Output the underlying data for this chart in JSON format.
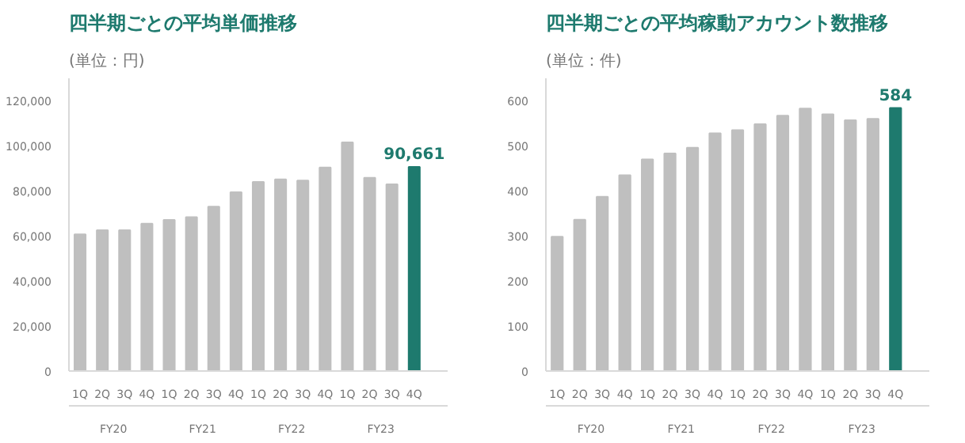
{
  "chart_data": [
    {
      "type": "bar",
      "title": "四半期ごとの平均単価推移",
      "ylabel": "(単位：円)",
      "categories": [
        "1Q",
        "2Q",
        "3Q",
        "4Q",
        "1Q",
        "2Q",
        "3Q",
        "4Q",
        "1Q",
        "2Q",
        "3Q",
        "4Q",
        "1Q",
        "2Q",
        "3Q",
        "4Q"
      ],
      "values": [
        60700,
        62500,
        62500,
        65400,
        67100,
        68300,
        73000,
        79400,
        84000,
        85100,
        84600,
        90400,
        101500,
        85800,
        82900,
        90661
      ],
      "colors": [
        "#bfbfbf",
        "#bfbfbf",
        "#bfbfbf",
        "#bfbfbf",
        "#bfbfbf",
        "#bfbfbf",
        "#bfbfbf",
        "#bfbfbf",
        "#bfbfbf",
        "#bfbfbf",
        "#bfbfbf",
        "#bfbfbf",
        "#bfbfbf",
        "#bfbfbf",
        "#bfbfbf",
        "#1e7a6e"
      ],
      "value_labels": [
        null,
        null,
        null,
        null,
        null,
        null,
        null,
        null,
        null,
        null,
        null,
        null,
        null,
        null,
        null,
        "90,661"
      ],
      "annotations": [
        "FY20",
        "FY21",
        "FY22",
        "FY23"
      ],
      "ylim": [
        0,
        130000
      ],
      "yticks": [
        {
          "value": 0,
          "label": "0"
        },
        {
          "value": 20000,
          "label": "20,000"
        },
        {
          "value": 40000,
          "label": "40,000"
        },
        {
          "value": 60000,
          "label": "60,000"
        },
        {
          "value": 80000,
          "label": "80,000"
        },
        {
          "value": 100000,
          "label": "100,000"
        },
        {
          "value": 120000,
          "label": "120,000"
        }
      ],
      "grid": false
    },
    {
      "type": "bar",
      "title": "四半期ごとの平均稼動アカウント数推移",
      "ylabel": "(単位：件)",
      "categories": [
        "1Q",
        "2Q",
        "3Q",
        "4Q",
        "1Q",
        "2Q",
        "3Q",
        "4Q",
        "1Q",
        "2Q",
        "3Q",
        "4Q",
        "1Q",
        "2Q",
        "3Q",
        "4Q"
      ],
      "values": [
        298,
        336,
        387,
        435,
        470,
        483,
        496,
        528,
        535,
        548,
        567,
        583,
        570,
        557,
        560,
        584
      ],
      "colors": [
        "#bfbfbf",
        "#bfbfbf",
        "#bfbfbf",
        "#bfbfbf",
        "#bfbfbf",
        "#bfbfbf",
        "#bfbfbf",
        "#bfbfbf",
        "#bfbfbf",
        "#bfbfbf",
        "#bfbfbf",
        "#bfbfbf",
        "#bfbfbf",
        "#bfbfbf",
        "#bfbfbf",
        "#1e7a6e"
      ],
      "value_labels": [
        null,
        null,
        null,
        null,
        null,
        null,
        null,
        null,
        null,
        null,
        null,
        null,
        null,
        null,
        null,
        "584"
      ],
      "annotations": [
        "FY20",
        "FY21",
        "FY22",
        "FY23"
      ],
      "ylim": [
        0,
        650
      ],
      "yticks": [
        0,
        100,
        200,
        300,
        400,
        500,
        600
      ],
      "grid": false
    }
  ]
}
